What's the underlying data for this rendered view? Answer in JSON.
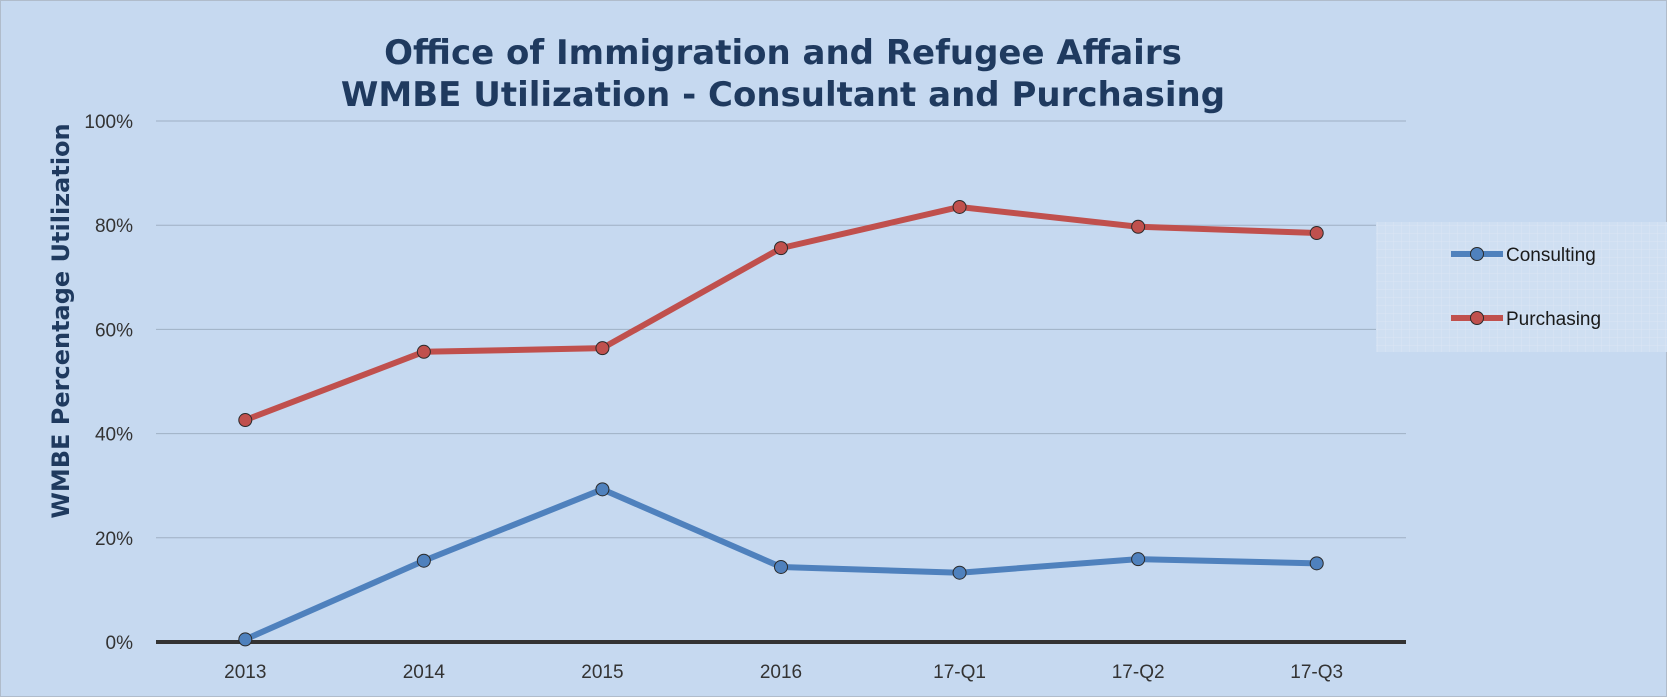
{
  "chart_data": {
    "type": "line",
    "title": [
      "Office of Immigration and Refugee Affairs",
      "WMBE Utilization - Consultant and Purchasing"
    ],
    "xlabel": "",
    "ylabel": "WMBE Percentage Utilization",
    "categories": [
      "2013",
      "2014",
      "2015",
      "2016",
      "17-Q1",
      "17-Q2",
      "17-Q3"
    ],
    "y_ticks": [
      "0%",
      "20%",
      "40%",
      "60%",
      "80%",
      "100%"
    ],
    "ylim": [
      0,
      100
    ],
    "grid": true,
    "legend_position": "right",
    "series": [
      {
        "name": "Consulting",
        "color": "#4f81bd",
        "values": [
          0.5,
          15.6,
          29.3,
          14.4,
          13.3,
          15.9,
          15.1
        ]
      },
      {
        "name": "Purchasing",
        "color": "#c0504d",
        "values": [
          42.6,
          55.7,
          56.4,
          75.6,
          83.5,
          79.7,
          78.5
        ]
      }
    ]
  }
}
